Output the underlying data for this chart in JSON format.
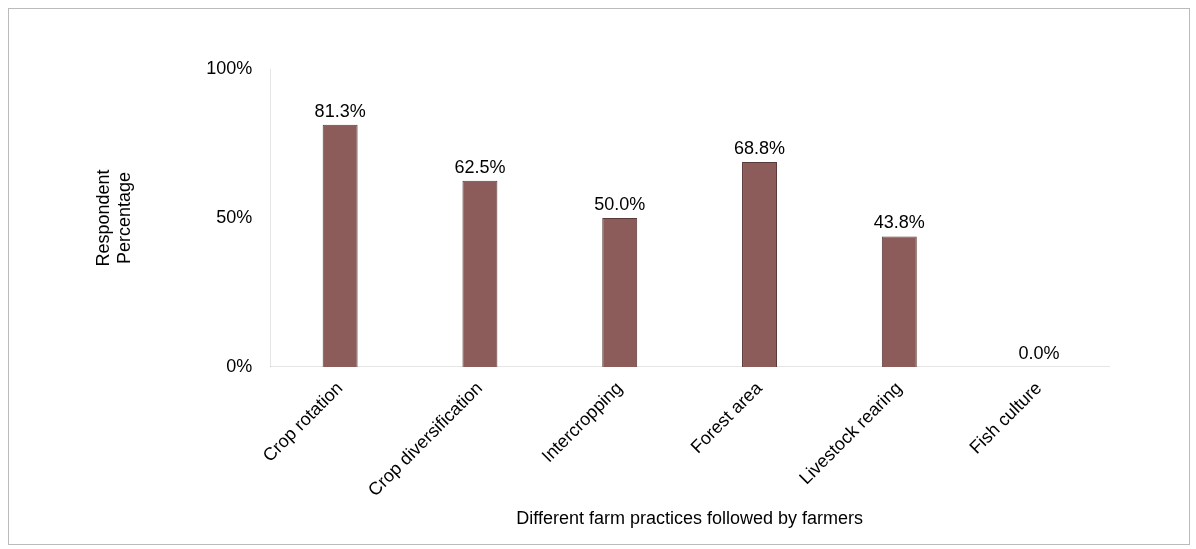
{
  "chart_data": {
    "type": "bar",
    "xlabel": "Different farm practices followed by farmers",
    "ylabel": "Respondent Percentage",
    "categories": [
      "Crop rotation",
      "Crop diversification",
      "Intercropping",
      "Forest area",
      "Livestock rearing",
      "Fish culture"
    ],
    "values": [
      81.3,
      62.5,
      50.0,
      68.8,
      43.8,
      0.0
    ],
    "value_labels": [
      "81.3%",
      "62.5%",
      "50.0%",
      "68.8%",
      "43.8%",
      "0.0%"
    ],
    "color": "#8b5c5a",
    "ylim": [
      0,
      100
    ],
    "yticks": [
      {
        "value": 0,
        "label": "0%"
      },
      {
        "value": 50,
        "label": "50%"
      },
      {
        "value": 100,
        "label": "100%"
      }
    ],
    "grid": false,
    "legend": false
  }
}
